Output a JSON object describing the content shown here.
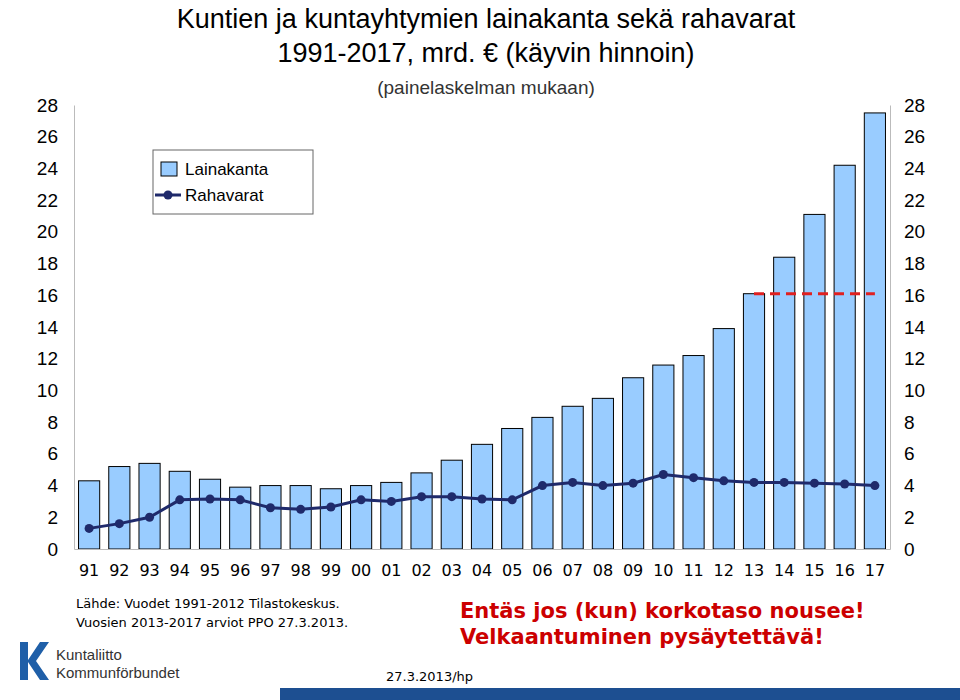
{
  "chart_data": {
    "type": "bar",
    "title": "Kuntien ja kuntayhtymien lainakanta sekä rahavarat\n1991-2017, mrd. € (käyvin hinnoin)",
    "subtitle": "(painelaskelman mukaan)",
    "categories": [
      "91",
      "92",
      "93",
      "94",
      "95",
      "96",
      "97",
      "98",
      "99",
      "00",
      "01",
      "02",
      "03",
      "04",
      "05",
      "06",
      "07",
      "08",
      "09",
      "10",
      "11",
      "12",
      "13",
      "14",
      "15",
      "16",
      "17"
    ],
    "series": [
      {
        "name": "Lainakanta",
        "type": "bar",
        "color": "#99ccff",
        "values": [
          4.3,
          5.2,
          5.4,
          4.9,
          4.4,
          3.9,
          4.0,
          4.0,
          3.8,
          4.0,
          4.2,
          4.8,
          5.6,
          6.6,
          7.6,
          8.3,
          9.0,
          9.5,
          10.8,
          11.6,
          12.2,
          13.9,
          16.1,
          18.4,
          21.1,
          24.2,
          27.5
        ]
      },
      {
        "name": "Rahavarat",
        "type": "line",
        "color": "#1f2a6b",
        "marker": "circle",
        "values": [
          1.3,
          1.6,
          2.0,
          3.1,
          3.15,
          3.1,
          2.6,
          2.5,
          2.65,
          3.1,
          3.0,
          3.3,
          3.3,
          3.15,
          3.1,
          4.0,
          4.2,
          4.0,
          4.15,
          4.7,
          4.5,
          4.3,
          4.2,
          4.2,
          4.15,
          4.1,
          4.0
        ]
      },
      {
        "type": "line",
        "color": "#e02020",
        "line_style": "dashed",
        "values": [
          null,
          null,
          null,
          null,
          null,
          null,
          null,
          null,
          null,
          null,
          null,
          null,
          null,
          null,
          null,
          null,
          null,
          null,
          null,
          null,
          null,
          null,
          16.1,
          16.1,
          16.1,
          16.1,
          16.1
        ]
      }
    ],
    "ylim": [
      0,
      28
    ],
    "yticks": [
      0,
      2,
      4,
      6,
      8,
      10,
      12,
      14,
      16,
      18,
      20,
      22,
      24,
      26,
      28
    ],
    "grid": false,
    "legend": "top-left",
    "source": [
      "Lähde: Vuodet 1991-2012 Tilastokeskus.",
      "Vuosien 2013-2017 arviot PPO 27.3.2013."
    ],
    "annotations": [
      "Entäs jos (kun) korkotaso nousee!",
      "Velkaantuminen pysäytettävä!"
    ],
    "footer": "27.3.2013/hp",
    "logo": [
      "Kuntaliitto",
      "Kommunförbundet"
    ]
  }
}
